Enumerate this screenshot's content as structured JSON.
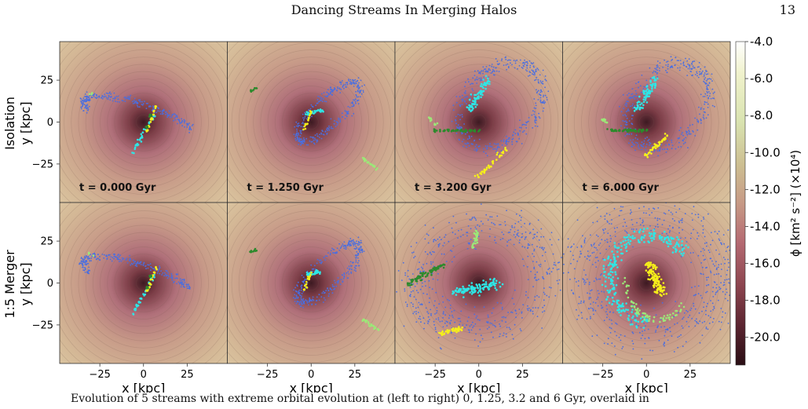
{
  "header": {
    "title": "Dancing Streams In Merging Halos",
    "page_number": "13"
  },
  "figure": {
    "rows": [
      {
        "label_line1": "Isolation",
        "label_line2": "y [kpc]"
      },
      {
        "label_line1": "1:5 Merger",
        "label_line2": "y [kpc]"
      }
    ],
    "panel_times": [
      "t = 0.000 Gyr",
      "t = 1.250 Gyr",
      "t = 3.200 Gyr",
      "t = 6.000 Gyr"
    ],
    "x_axis_label": "x [kpc]",
    "x_ticks": [
      "−25",
      "0",
      "25"
    ],
    "y_ticks": [
      "25",
      "0",
      "−25"
    ],
    "colorbar": {
      "label": "ϕ [km² s⁻²] (×10⁴)",
      "ticks": [
        "-4.0",
        "-6.0",
        "-8.0",
        "-10.0",
        "-12.0",
        "-14.0",
        "-16.0",
        "-18.0",
        "-20.0"
      ],
      "colors": [
        "#ffffff",
        "#f0f2cc",
        "#d9e8a8",
        "#cdbf92",
        "#c79a86",
        "#b56a72",
        "#8e4650",
        "#5a2430",
        "#2a0e14"
      ]
    },
    "stream_colors": [
      "#4a6ee0",
      "#2ee6e6",
      "#f5ef1a",
      "#9ce878",
      "#2c8a2c"
    ]
  },
  "caption": {
    "text": "Evolution of 5 streams with extreme orbital evolution at (left to right) 0, 1.25, 3.2 and 6 Gyr, overlaid in"
  },
  "chart_data": {
    "type": "scatter",
    "xlabel": "x [kpc]",
    "ylabel": "y [kpc]",
    "xlim": [
      -48,
      48
    ],
    "ylim": [
      -48,
      48
    ],
    "colorbar_range": [
      -21.5,
      -4.0
    ],
    "colorbar_label": "ϕ [km² s⁻²] (×10⁴)"
  }
}
